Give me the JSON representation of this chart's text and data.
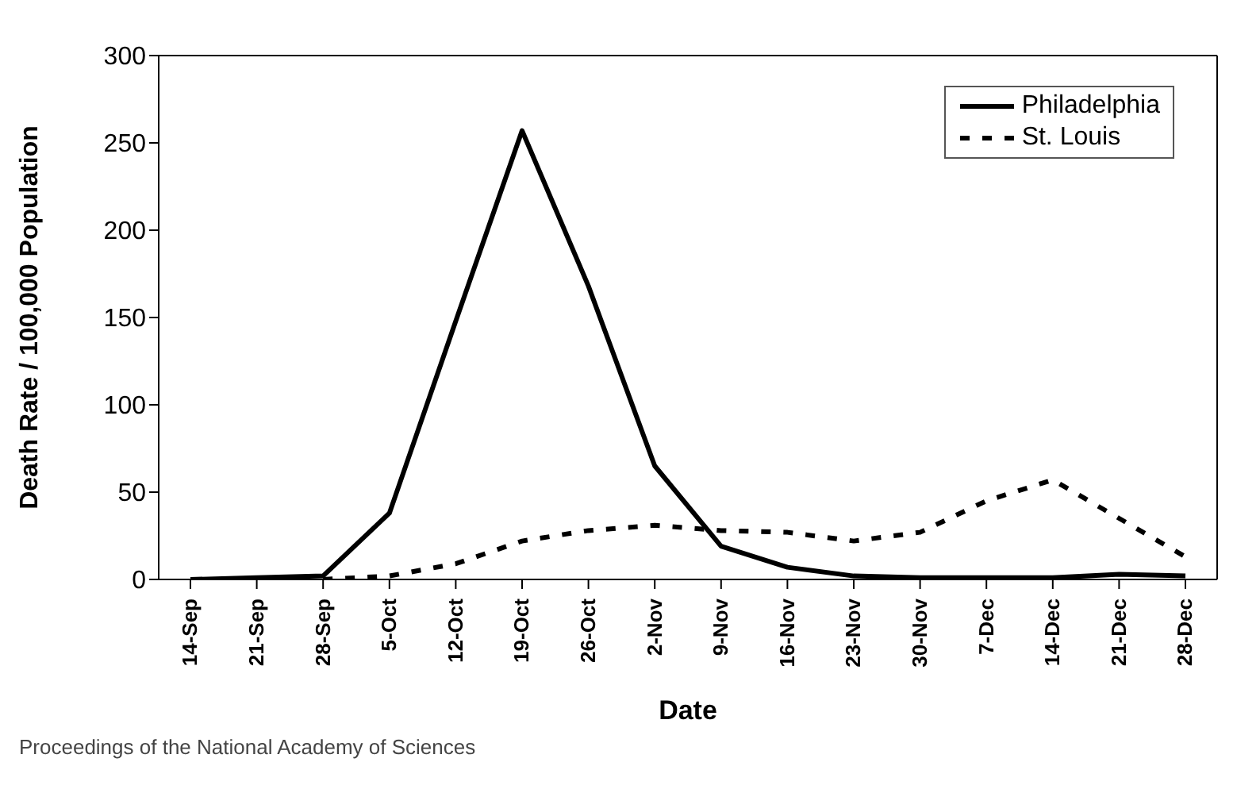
{
  "chart_data": {
    "type": "line",
    "xlabel": "Date",
    "ylabel": "Death Rate / 100,000 Population",
    "categories": [
      "14-Sep",
      "21-Sep",
      "28-Sep",
      "5-Oct",
      "12-Oct",
      "19-Oct",
      "26-Oct",
      "2-Nov",
      "9-Nov",
      "16-Nov",
      "23-Nov",
      "30-Nov",
      "7-Dec",
      "14-Dec",
      "21-Dec",
      "28-Dec"
    ],
    "series": [
      {
        "name": "Philadelphia",
        "color": "#000000",
        "line_style": "solid",
        "values": [
          0,
          1,
          2,
          38,
          148,
          257,
          168,
          65,
          19,
          7,
          2,
          1,
          1,
          1,
          3,
          2
        ]
      },
      {
        "name": "St. Louis",
        "color": "#000000",
        "line_style": "dotted",
        "values": [
          null,
          null,
          0,
          2,
          9,
          22,
          28,
          31,
          28,
          27,
          22,
          27,
          45,
          57,
          35,
          13
        ]
      }
    ],
    "ylim": [
      0,
      300
    ],
    "yticks": [
      0,
      50,
      100,
      150,
      200,
      250,
      300
    ],
    "grid": false,
    "legend": "top right",
    "marker": "none",
    "annotations": [
      "Proceedings of the National Academy of Sciences"
    ]
  }
}
